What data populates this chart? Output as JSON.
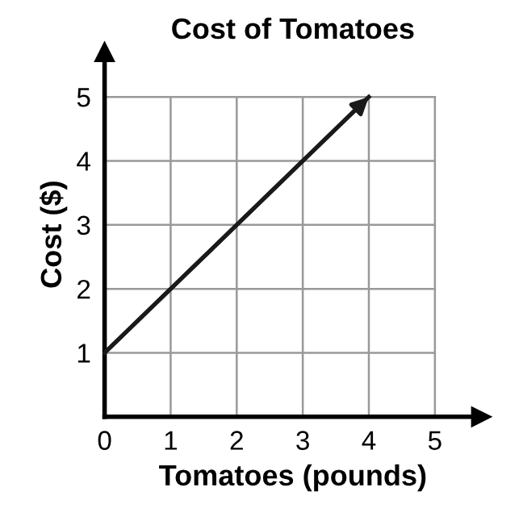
{
  "chart_data": {
    "type": "line",
    "title": "Cost of Tomatoes",
    "xlabel": "Tomatoes (pounds)",
    "ylabel": "Cost ($)",
    "x": [
      0,
      4
    ],
    "series": [
      {
        "color": "#1a1a1a",
        "values": [
          1,
          5
        ]
      }
    ],
    "xlim": [
      0,
      5.7
    ],
    "ylim": [
      0,
      5.7
    ],
    "xticks": [
      0,
      1,
      2,
      3,
      4,
      5
    ],
    "yticks": [
      {
        "value": 0,
        "label": null
      },
      1,
      2,
      3,
      4,
      5
    ],
    "grid": true,
    "marker": "none",
    "line_style": "solid",
    "legend": false
  }
}
